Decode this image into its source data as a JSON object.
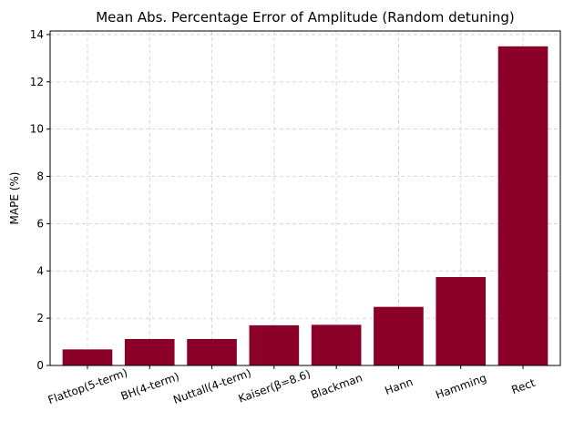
{
  "chart_data": {
    "type": "bar",
    "title": "Mean Abs. Percentage Error of Amplitude (Random detuning)",
    "xlabel": "",
    "ylabel": "MAPE (%)",
    "categories": [
      "Flattop(5-term)",
      "BH(4-term)",
      "Nuttall(4-term)",
      "Kaiser(β=8.6)",
      "Blackman",
      "Hann",
      "Hamming",
      "Rect"
    ],
    "values": [
      0.68,
      1.12,
      1.12,
      1.7,
      1.72,
      2.48,
      3.74,
      13.5
    ],
    "ylim": [
      0,
      14.15
    ],
    "yticks": [
      0,
      2,
      4,
      6,
      8,
      10,
      12,
      14
    ],
    "grid": true,
    "bar_color": "#8b0029",
    "grid_color": "#cccccc"
  }
}
